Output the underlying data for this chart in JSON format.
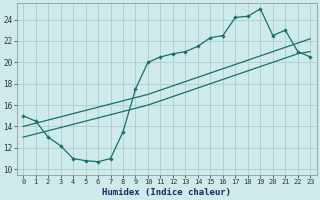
{
  "xlabel": "Humidex (Indice chaleur)",
  "bg_color": "#ceeaea",
  "grid_color": "#aacfcf",
  "line_color": "#1a6e6e",
  "xlim": [
    -0.5,
    23.5
  ],
  "ylim": [
    9.5,
    25.5
  ],
  "xticks": [
    0,
    1,
    2,
    3,
    4,
    5,
    6,
    7,
    8,
    9,
    10,
    11,
    12,
    13,
    14,
    15,
    16,
    17,
    18,
    19,
    20,
    21,
    22,
    23
  ],
  "yticks": [
    10,
    12,
    14,
    16,
    18,
    20,
    22,
    24
  ],
  "line1_x": [
    0,
    1,
    2,
    3,
    4,
    5,
    6,
    7,
    8,
    9,
    10,
    11,
    12,
    13,
    14,
    15,
    16,
    17,
    18,
    19,
    20,
    21,
    22,
    23
  ],
  "line1_y": [
    15.0,
    14.5,
    13.0,
    12.2,
    11.0,
    10.8,
    10.7,
    11.0,
    13.5,
    17.5,
    20.0,
    20.5,
    20.8,
    21.0,
    21.5,
    22.3,
    22.5,
    24.2,
    24.3,
    25.0,
    22.5,
    23.0,
    21.0,
    20.5
  ],
  "line2_x": [
    0,
    1,
    2,
    3,
    4,
    5,
    6,
    7,
    8,
    9,
    10,
    11,
    12,
    13,
    14,
    15,
    16,
    17,
    18,
    19,
    20,
    21,
    22,
    23
  ],
  "line2_y": [
    13.0,
    13.3,
    13.6,
    13.9,
    14.2,
    14.5,
    14.8,
    15.1,
    15.4,
    15.7,
    16.0,
    16.4,
    16.8,
    17.2,
    17.6,
    18.0,
    18.4,
    18.8,
    19.2,
    19.6,
    20.0,
    20.4,
    20.8,
    21.0
  ],
  "line3_x": [
    0,
    1,
    2,
    3,
    4,
    5,
    6,
    7,
    8,
    9,
    10,
    11,
    12,
    13,
    14,
    15,
    16,
    17,
    18,
    19,
    20,
    21,
    22,
    23
  ],
  "line3_y": [
    14.0,
    14.3,
    14.6,
    14.9,
    15.2,
    15.5,
    15.8,
    16.1,
    16.4,
    16.7,
    17.0,
    17.4,
    17.8,
    18.2,
    18.6,
    19.0,
    19.4,
    19.8,
    20.2,
    20.6,
    21.0,
    21.4,
    21.8,
    22.2
  ]
}
